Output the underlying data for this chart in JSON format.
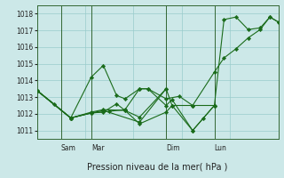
{
  "background_color": "#cce8e8",
  "grid_color": "#99cccc",
  "line_color": "#1a6b1a",
  "marker_color": "#1a6b1a",
  "ylim": [
    1010.5,
    1018.5
  ],
  "yticks": [
    1011,
    1012,
    1013,
    1014,
    1015,
    1016,
    1017,
    1018
  ],
  "xlabel": "Pression niveau de la mer( hPa )",
  "day_labels": [
    "Sam",
    "Mar",
    "Dim",
    "Lun"
  ],
  "day_positions": [
    0.1,
    0.225,
    0.535,
    0.735
  ],
  "xlim": [
    0,
    1.0
  ],
  "series": [
    [
      0.0,
      1013.4,
      0.07,
      1012.6,
      0.14,
      1011.75,
      0.225,
      1012.05,
      0.3,
      1012.15,
      0.365,
      1012.25,
      0.425,
      1013.5,
      0.46,
      1013.5,
      0.535,
      1012.9,
      0.59,
      1013.05,
      0.645,
      1012.5,
      0.735,
      1014.5,
      0.775,
      1015.35,
      0.825,
      1015.9,
      0.875,
      1016.55,
      0.925,
      1017.05,
      0.965,
      1017.8,
      1.0,
      1017.5
    ],
    [
      0.0,
      1013.4,
      0.14,
      1011.75,
      0.225,
      1014.2,
      0.275,
      1014.9,
      0.33,
      1013.1,
      0.365,
      1012.9,
      0.425,
      1013.5,
      0.46,
      1013.5,
      0.535,
      1012.5,
      0.56,
      1012.85,
      0.645,
      1011.0,
      0.735,
      1012.5,
      0.775,
      1017.65,
      0.825,
      1017.8,
      0.875,
      1017.05,
      0.925,
      1017.15,
      0.965,
      1017.8,
      1.0,
      1017.5
    ],
    [
      0.0,
      1013.4,
      0.14,
      1011.75,
      0.225,
      1012.05,
      0.275,
      1012.1,
      0.33,
      1012.6,
      0.365,
      1012.2,
      0.425,
      1011.4,
      0.535,
      1012.1,
      0.56,
      1012.5,
      0.645,
      1012.5,
      0.735,
      1012.5
    ],
    [
      0.0,
      1013.4,
      0.14,
      1011.75,
      0.225,
      1012.05,
      0.275,
      1012.2,
      0.425,
      1011.5,
      0.535,
      1013.5
    ],
    [
      0.0,
      1013.4,
      0.14,
      1011.75,
      0.225,
      1012.1,
      0.275,
      1012.25,
      0.365,
      1012.2,
      0.425,
      1011.8,
      0.535,
      1013.5,
      0.56,
      1012.5,
      0.645,
      1011.0,
      0.69,
      1011.75,
      0.735,
      1012.5
    ]
  ]
}
